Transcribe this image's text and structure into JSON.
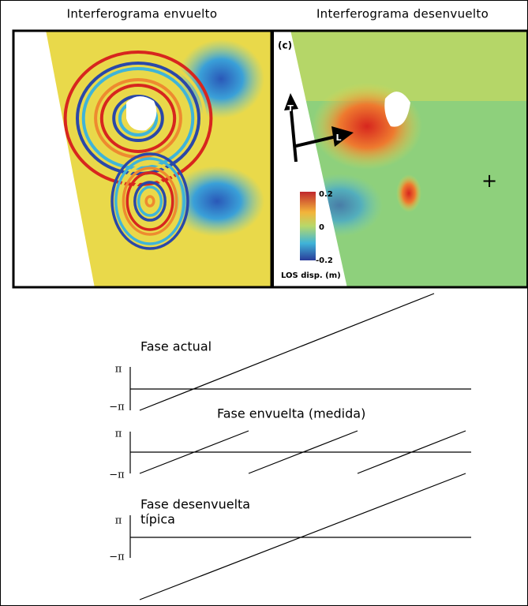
{
  "panels": [
    {
      "title": "Interferograma envuelto"
    },
    {
      "title": "Interferograma desenvuelto",
      "label": "(c)",
      "arrows": [
        "T",
        "L"
      ],
      "colorbar": {
        "ticks": [
          "0.2",
          "0",
          "-0.2"
        ],
        "label": "LOS disp. (m)"
      },
      "marker": "+"
    }
  ],
  "diagram": {
    "plots": [
      {
        "label": [
          "Fase actual"
        ],
        "pi": "π",
        "minus_pi": "−π"
      },
      {
        "label": [
          "Fase envuelta (medida)"
        ],
        "pi": "π",
        "minus_pi": "−π"
      },
      {
        "label": [
          "Fase desenvuelta",
          "típica"
        ],
        "pi": "π",
        "minus_pi": "−π"
      }
    ]
  }
}
